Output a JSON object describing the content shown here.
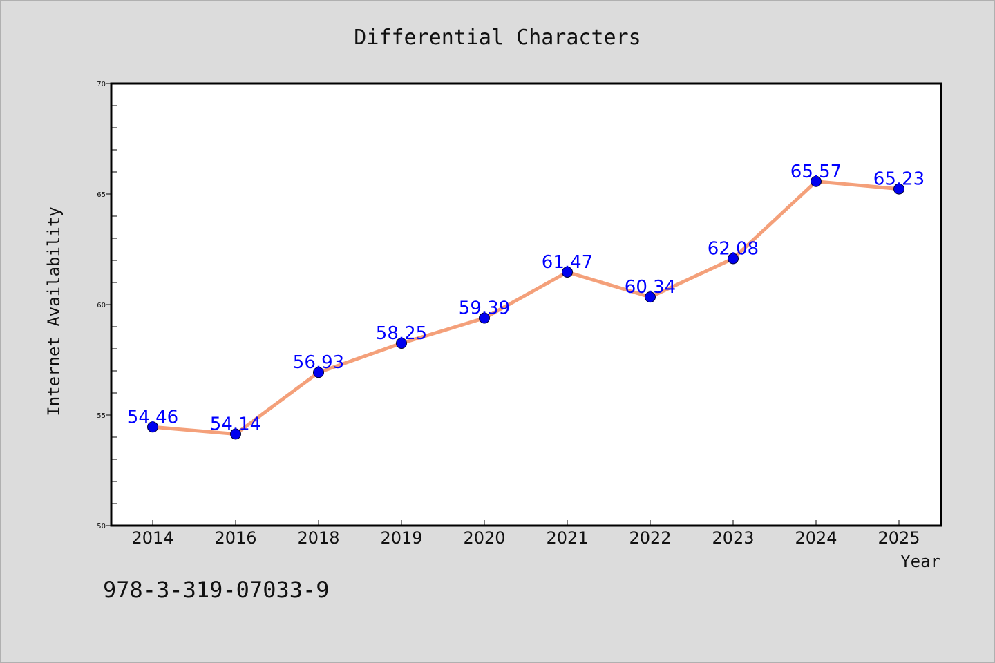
{
  "chart_data": {
    "type": "line",
    "title": "Differential Characters",
    "xlabel": "Year",
    "ylabel": "Internet Availability",
    "categories": [
      "2014",
      "2016",
      "2018",
      "2019",
      "2020",
      "2021",
      "2022",
      "2023",
      "2024",
      "2025"
    ],
    "series": [
      {
        "values": [
          54.46,
          54.14,
          56.93,
          58.25,
          59.39,
          61.47,
          60.34,
          62.08,
          65.57,
          65.23
        ],
        "line_color": "#f4a07a",
        "marker_color": "#0000ee"
      }
    ],
    "data_labels": [
      "54.46",
      "54.14",
      "56.93",
      "58.25",
      "59.39",
      "61.47",
      "60.34",
      "62.08",
      "65.57",
      "65.23"
    ],
    "ylim": [
      50,
      70
    ],
    "yticks": [
      "50",
      "55",
      "60",
      "65",
      "70"
    ],
    "grid": false,
    "legend": "none"
  },
  "footer": {
    "isbn": "978-3-319-07033-9"
  },
  "colors": {
    "background": "#dcdcdc",
    "plot_background": "#ffffff",
    "label_color": "#0000ff"
  }
}
